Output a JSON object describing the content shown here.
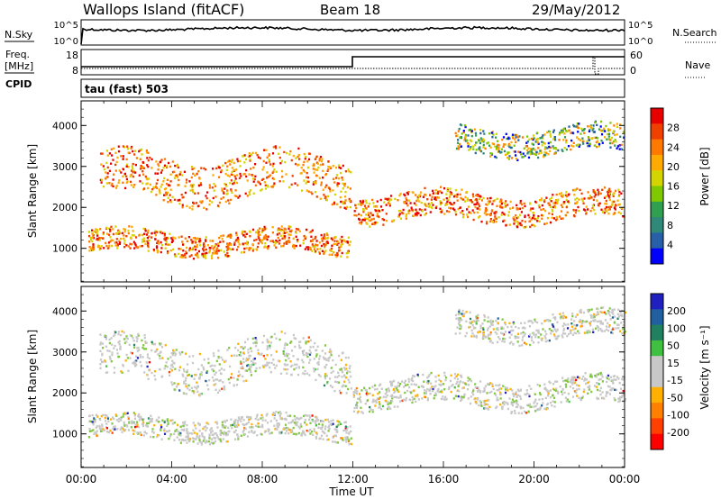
{
  "header": {
    "station": "Wallops Island (fitACF)",
    "beam": "Beam 18",
    "date": "29/May/2012"
  },
  "top_panels": {
    "nsky_label": "N.Sky",
    "nsky_ticks": [
      "10^5",
      "10^0"
    ],
    "nsky_right_ticks": [
      "10^5",
      "10^0"
    ],
    "nsearch_label": "N.Search",
    "freq_label_1": "Freq.",
    "freq_label_2": "[MHz]",
    "cpid_label": "CPID",
    "freq_ticks": [
      "18",
      "8"
    ],
    "nave_label": "Nave",
    "nave_ticks": [
      "60",
      "0"
    ],
    "cpid_text": "tau (fast) 503"
  },
  "chart_data": [
    {
      "type": "heatmap",
      "title": "",
      "xlabel": "Time UT",
      "ylabel": "Slant Range [km]",
      "x_tick_labels": [
        "00:00",
        "04:00",
        "08:00",
        "12:00",
        "16:00",
        "20:00",
        "00:00"
      ],
      "y_tick_labels": [
        "1000",
        "2000",
        "3000",
        "4000"
      ],
      "xlim_hours": [
        0,
        24
      ],
      "ylim_km": [
        180,
        4600
      ],
      "colorbar_label": "Power [dB]",
      "colorbar_ticks": [
        "28",
        "24",
        "20",
        "16",
        "12",
        "8",
        "4"
      ],
      "colorbar_colors": [
        "#e80000",
        "#f04000",
        "#ff7800",
        "#ffaa00",
        "#d4d400",
        "#80c800",
        "#30a050",
        "#308878",
        "#2860a8",
        "#0000ff"
      ],
      "echo_bands": [
        {
          "t0": 0.3,
          "t1": 11.9,
          "r0": 780,
          "r1": 1550,
          "power": "strong"
        },
        {
          "t0": 0.8,
          "t1": 11.9,
          "r0": 2000,
          "r1": 3500,
          "power": "strong"
        },
        {
          "t0": 12.0,
          "t1": 24.0,
          "r0": 1550,
          "r1": 2500,
          "power": "strong"
        },
        {
          "t0": 16.5,
          "t1": 24.0,
          "r0": 3200,
          "r1": 4100,
          "power": "moderate"
        }
      ]
    },
    {
      "type": "heatmap",
      "title": "",
      "xlabel": "Time UT",
      "ylabel": "Slant Range [km]",
      "x_tick_labels": [
        "00:00",
        "04:00",
        "08:00",
        "12:00",
        "16:00",
        "20:00",
        "00:00"
      ],
      "y_tick_labels": [
        "1000",
        "2000",
        "3000",
        "4000"
      ],
      "xlim_hours": [
        0,
        24
      ],
      "ylim_km": [
        180,
        4600
      ],
      "colorbar_label": "Velocity [m s⁻¹]",
      "colorbar_ticks": [
        "200",
        "100",
        "50",
        "15",
        "-15",
        "-50",
        "-100",
        "-200"
      ],
      "colorbar_colors": [
        "#2020c0",
        "#2060a0",
        "#208060",
        "#40c040",
        "#c8c8c8",
        "#c8c8c8",
        "#ffb000",
        "#ff8000",
        "#ff4000",
        "#ff0000"
      ],
      "echo_bands": [
        {
          "t0": 0.3,
          "t1": 11.9,
          "r0": 780,
          "r1": 1550,
          "velocity": "near zero"
        },
        {
          "t0": 0.8,
          "t1": 11.9,
          "r0": 2000,
          "r1": 3500,
          "velocity": "near zero to +50"
        },
        {
          "t0": 12.0,
          "t1": 24.0,
          "r0": 1550,
          "r1": 2500,
          "velocity": "near zero"
        },
        {
          "t0": 16.5,
          "t1": 24.0,
          "r0": 3200,
          "r1": 4100,
          "velocity": "near zero"
        }
      ]
    }
  ],
  "colors": {
    "noise_line": "#000000",
    "gs_grey": "#c8c8c8"
  }
}
